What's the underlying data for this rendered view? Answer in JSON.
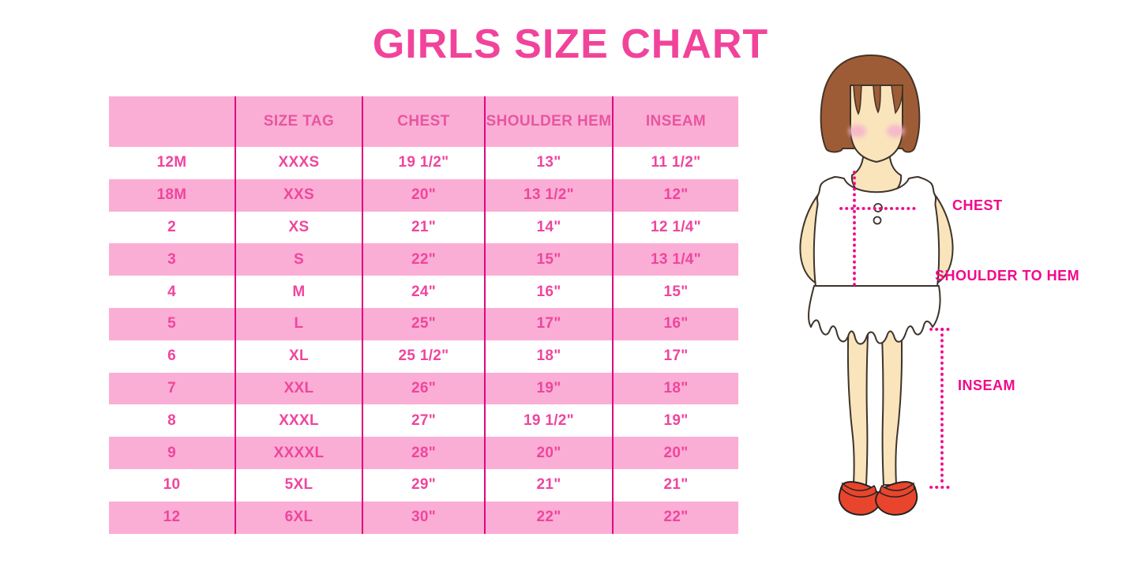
{
  "title": "GIRLS SIZE CHART",
  "table": {
    "headers": [
      "",
      "SIZE TAG",
      "CHEST",
      "SHOULDER HEM",
      "INSEAM"
    ],
    "rows": [
      [
        "12M",
        "XXXS",
        "19 1/2\"",
        "13\"",
        "11 1/2\""
      ],
      [
        "18M",
        "XXS",
        "20\"",
        "13 1/2\"",
        "12\""
      ],
      [
        "2",
        "XS",
        "21\"",
        "14\"",
        "12 1/4\""
      ],
      [
        "3",
        "S",
        "22\"",
        "15\"",
        "13 1/4\""
      ],
      [
        "4",
        "M",
        "24\"",
        "16\"",
        "15\""
      ],
      [
        "5",
        "L",
        "25\"",
        "17\"",
        "16\""
      ],
      [
        "6",
        "XL",
        "25 1/2\"",
        "18\"",
        "17\""
      ],
      [
        "7",
        "XXL",
        "26\"",
        "19\"",
        "18\""
      ],
      [
        "8",
        "XXXL",
        "27\"",
        "19 1/2\"",
        "19\""
      ],
      [
        "9",
        "XXXXL",
        "28\"",
        "20\"",
        "20\""
      ],
      [
        "10",
        "5XL",
        "29\"",
        "21\"",
        "21\""
      ],
      [
        "12",
        "6XL",
        "30\"",
        "22\"",
        "22\""
      ]
    ]
  },
  "figure": {
    "labels": {
      "chest": "CHEST",
      "shoulder_to_hem": "SHOULDER TO HEM",
      "inseam": "INSEAM"
    }
  },
  "colors": {
    "title_pink": "#f2439b",
    "stripe_pink": "#fbaed5",
    "table_text_pink": "#ef459e",
    "divider_magenta": "#e0077f",
    "label_magenta": "#f2088a",
    "hair_brown": "#9e5c36",
    "skin_tone": "#f9e4bc",
    "shoe_red": "#e9452c"
  }
}
